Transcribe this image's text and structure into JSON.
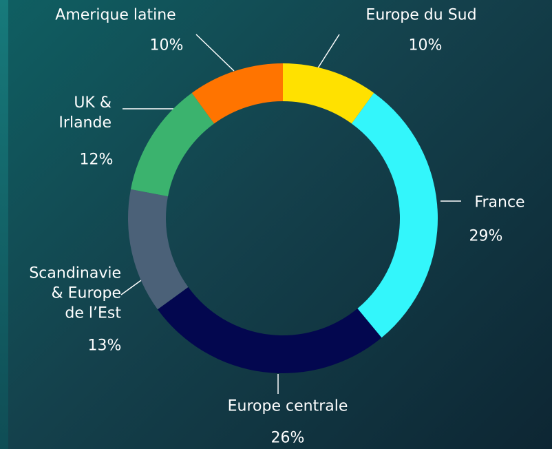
{
  "chart_data": {
    "type": "donut",
    "categories": [
      "Europe du Sud",
      "France",
      "Europe centrale",
      "Scandinavie\n& Europe\nde l’Est",
      "UK &\nIrlande",
      "Amerique latine"
    ],
    "values": [
      10,
      29,
      26,
      13,
      12,
      10
    ],
    "value_labels": [
      "10%",
      "29%",
      "26%",
      "13%",
      "12%",
      "10%"
    ],
    "colors": [
      "#ffe100",
      "#33f6fb",
      "#03074f",
      "#4b6178",
      "#3bb36e",
      "#ff7400"
    ]
  }
}
